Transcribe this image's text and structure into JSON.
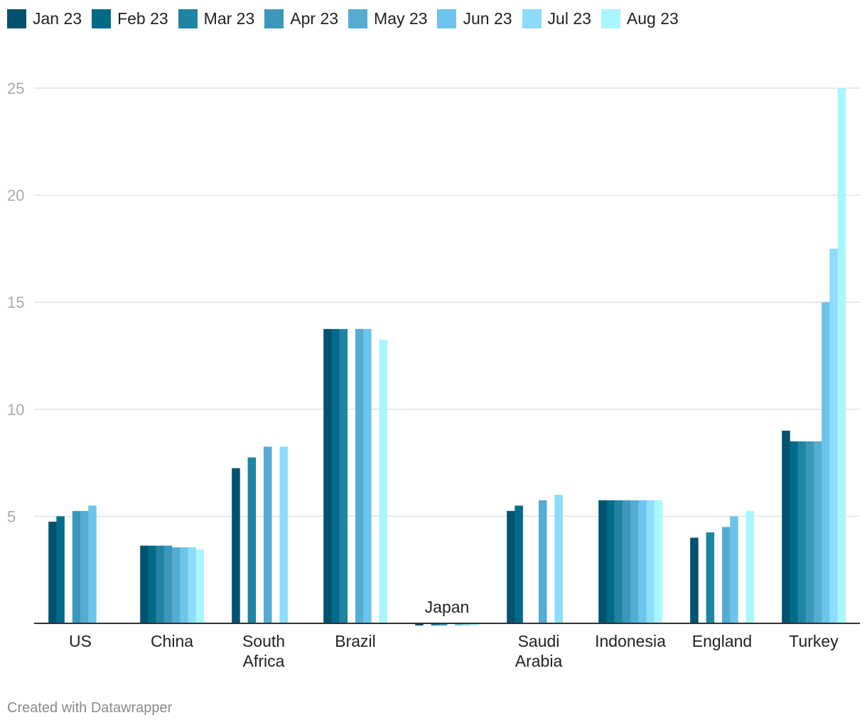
{
  "chart_data": {
    "type": "bar",
    "categories": [
      "US",
      "China",
      "South Africa",
      "Brazil",
      "Japan",
      "Saudi Arabia",
      "Indonesia",
      "England",
      "Turkey"
    ],
    "category_label_lines": [
      [
        "US"
      ],
      [
        "China"
      ],
      [
        "South",
        "Africa"
      ],
      [
        "Brazil"
      ],
      [
        "Japan"
      ],
      [
        "Saudi",
        "Arabia"
      ],
      [
        "Indonesia"
      ],
      [
        "England"
      ],
      [
        "Turkey"
      ]
    ],
    "series": [
      {
        "name": "Jan 23",
        "color": "#01526e",
        "values": [
          4.75,
          3.63,
          7.25,
          13.75,
          -0.1,
          5.25,
          5.75,
          4.0,
          9.0
        ]
      },
      {
        "name": "Feb 23",
        "color": "#026b8a",
        "values": [
          5.0,
          3.63,
          null,
          13.75,
          null,
          5.5,
          5.75,
          null,
          8.5
        ]
      },
      {
        "name": "Mar 23",
        "color": "#1e84a1",
        "values": [
          null,
          3.63,
          7.75,
          13.75,
          -0.1,
          null,
          5.75,
          4.25,
          8.5
        ]
      },
      {
        "name": "Apr 23",
        "color": "#3b98ba",
        "values": [
          5.25,
          3.63,
          null,
          null,
          -0.1,
          null,
          5.75,
          null,
          8.5
        ]
      },
      {
        "name": "May 23",
        "color": "#54acd3",
        "values": [
          5.25,
          3.55,
          8.25,
          13.75,
          null,
          5.75,
          5.75,
          4.5,
          8.5
        ]
      },
      {
        "name": "Jun 23",
        "color": "#6cc4ea",
        "values": [
          5.5,
          3.55,
          null,
          13.75,
          -0.1,
          null,
          5.75,
          5.0,
          15.0
        ]
      },
      {
        "name": "Jul 23",
        "color": "#8ddcfb",
        "values": [
          null,
          3.55,
          8.25,
          null,
          -0.1,
          6.0,
          5.75,
          null,
          17.5
        ]
      },
      {
        "name": "Aug 23",
        "color": "#a8f6ff",
        "values": [
          null,
          3.45,
          null,
          13.25,
          -0.1,
          null,
          5.75,
          5.25,
          25.0
        ]
      }
    ],
    "y_ticks": [
      5,
      10,
      15,
      20,
      25
    ],
    "ylim": [
      0,
      25
    ],
    "grid": true,
    "legend": "top-left"
  },
  "footer": {
    "credit": "Created with Datawrapper"
  },
  "colors": {
    "gridline": "#e2e2e2",
    "baseline": "#333333",
    "tick_label": "#aaaaaa",
    "category_label": "#222222"
  }
}
